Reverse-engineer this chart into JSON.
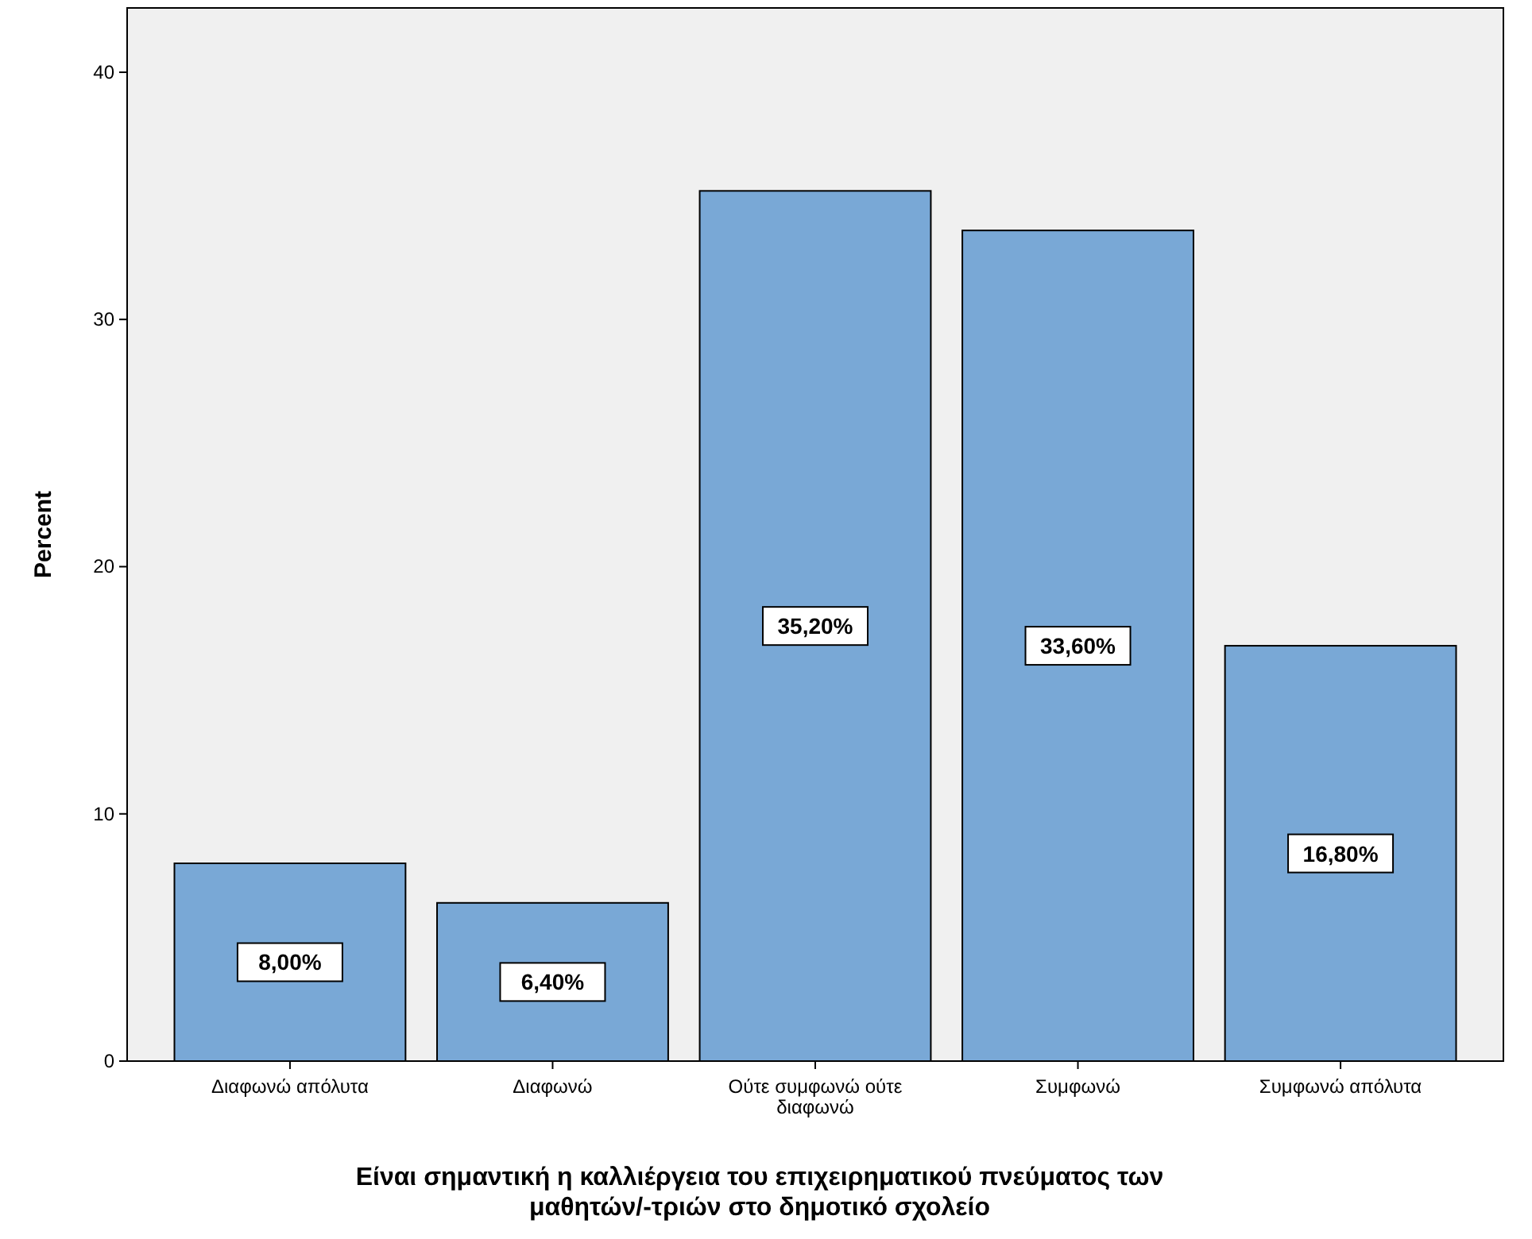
{
  "chart_data": {
    "type": "bar",
    "xlabel": "Είναι σημαντική η καλλιέργεια του επιχειρηματικού πνεύματος των μαθητών/-τριών στο δημοτικό σχολείο",
    "ylabel": "Percent",
    "categories": [
      "Διαφωνώ απόλυτα",
      "Διαφωνώ",
      "Ούτε συμφωνώ ούτε διαφωνώ",
      "Συμφωνώ",
      "Συμφωνώ απόλυτα"
    ],
    "values": [
      8.0,
      6.4,
      35.2,
      33.6,
      16.8
    ],
    "value_labels": [
      "8,00%",
      "6,40%",
      "35,20%",
      "33,60%",
      "16,80%"
    ],
    "color": "#79a8d6",
    "ylim": [
      0,
      42.6
    ],
    "yticks": [
      0,
      10,
      20,
      30,
      40
    ],
    "grid": false
  }
}
